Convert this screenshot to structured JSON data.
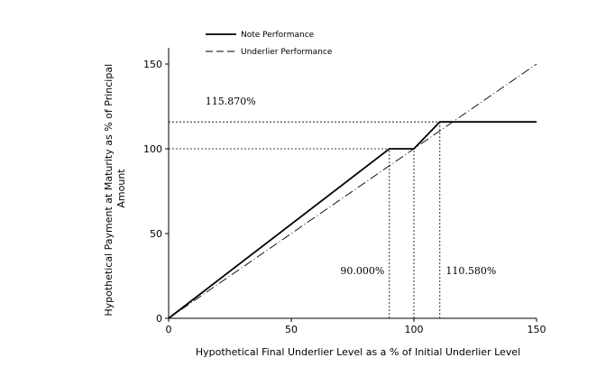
{
  "chart_data": {
    "type": "line",
    "title": "",
    "xlabel": "Hypothetical Final Underlier Level as a % of Initial Underlier Level",
    "ylabel": [
      "Hypothetical Payment at Maturity as % of Principal",
      "Amount"
    ],
    "xlim": [
      0,
      150
    ],
    "ylim": [
      0,
      150
    ],
    "xticks": [
      0,
      50,
      100,
      150
    ],
    "yticks": [
      0,
      50,
      100,
      150
    ],
    "grid": false,
    "legend": "top-left",
    "series": [
      {
        "name": "Note Performance",
        "style": "solid",
        "color": "#000000",
        "points": [
          [
            0,
            0
          ],
          [
            90,
            100
          ],
          [
            100,
            100
          ],
          [
            110.58,
            115.87
          ],
          [
            150,
            115.87
          ]
        ]
      },
      {
        "name": "Underlier Performance",
        "style": "dash-dot",
        "color": "#000000",
        "points": [
          [
            0,
            0
          ],
          [
            150,
            150
          ]
        ]
      }
    ],
    "reference_lines": [
      {
        "orientation": "horizontal",
        "y": 115.87,
        "x_from": 0,
        "x_to": 110.58
      },
      {
        "orientation": "horizontal",
        "y": 100,
        "x_from": 0,
        "x_to": 90
      },
      {
        "orientation": "vertical",
        "x": 90,
        "y_from": 0,
        "y_to": 100
      },
      {
        "orientation": "vertical",
        "x": 100,
        "y_from": 0,
        "y_to": 100
      },
      {
        "orientation": "vertical",
        "x": 110.58,
        "y_from": 0,
        "y_to": 115.87
      }
    ],
    "annotations": [
      {
        "text": "115.870%",
        "x": 15,
        "y": 126
      },
      {
        "text": "90.000%",
        "x": 70,
        "y": 26
      },
      {
        "text": "110.580%",
        "x": 113,
        "y": 26
      }
    ]
  }
}
